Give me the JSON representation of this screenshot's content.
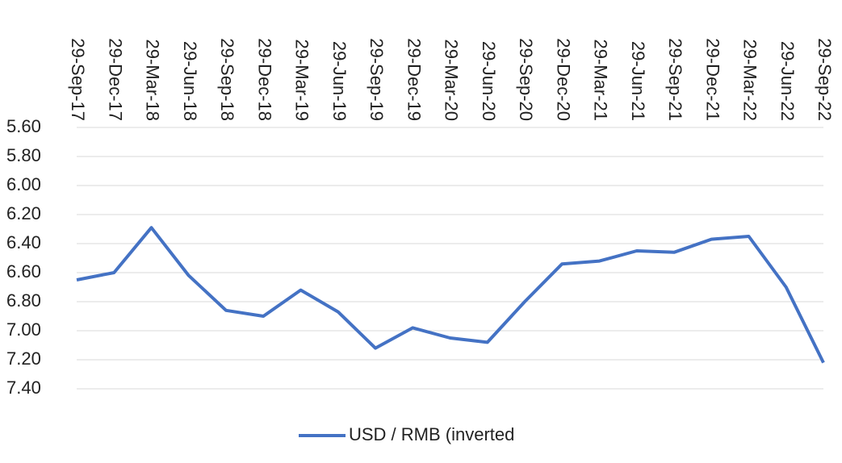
{
  "chart_data": {
    "type": "line",
    "categories": [
      "29-Sep-17",
      "29-Dec-17",
      "29-Mar-18",
      "29-Jun-18",
      "29-Sep-18",
      "29-Dec-18",
      "29-Mar-19",
      "29-Jun-19",
      "29-Sep-19",
      "29-Dec-19",
      "29-Mar-20",
      "29-Jun-20",
      "29-Sep-20",
      "29-Dec-20",
      "29-Mar-21",
      "29-Jun-21",
      "29-Sep-21",
      "29-Dec-21",
      "29-Mar-22",
      "29-Jun-22",
      "29-Sep-22"
    ],
    "series": [
      {
        "name": "USD / RMB (inverted",
        "color": "#4472c4",
        "values": [
          6.65,
          6.6,
          6.29,
          6.62,
          6.86,
          6.9,
          6.72,
          6.87,
          7.12,
          6.98,
          7.05,
          7.08,
          6.8,
          6.54,
          6.52,
          6.45,
          6.46,
          6.37,
          6.35,
          6.7,
          7.22
        ]
      }
    ],
    "ylim": [
      5.6,
      7.4
    ],
    "y_inverted": true,
    "yticks": [
      {
        "value": 5.6,
        "label": "5.60"
      },
      {
        "value": 5.8,
        "label": "5.80"
      },
      {
        "value": 6.0,
        "label": "6.00"
      },
      {
        "value": 6.2,
        "label": "6.20"
      },
      {
        "value": 6.4,
        "label": "6.40"
      },
      {
        "value": 6.6,
        "label": "6.60"
      },
      {
        "value": 6.8,
        "label": "6.80"
      },
      {
        "value": 7.0,
        "label": "7.00"
      },
      {
        "value": 7.2,
        "label": "7.20"
      },
      {
        "value": 7.4,
        "label": "7.40"
      }
    ],
    "grid": true,
    "legend": "bottom"
  }
}
